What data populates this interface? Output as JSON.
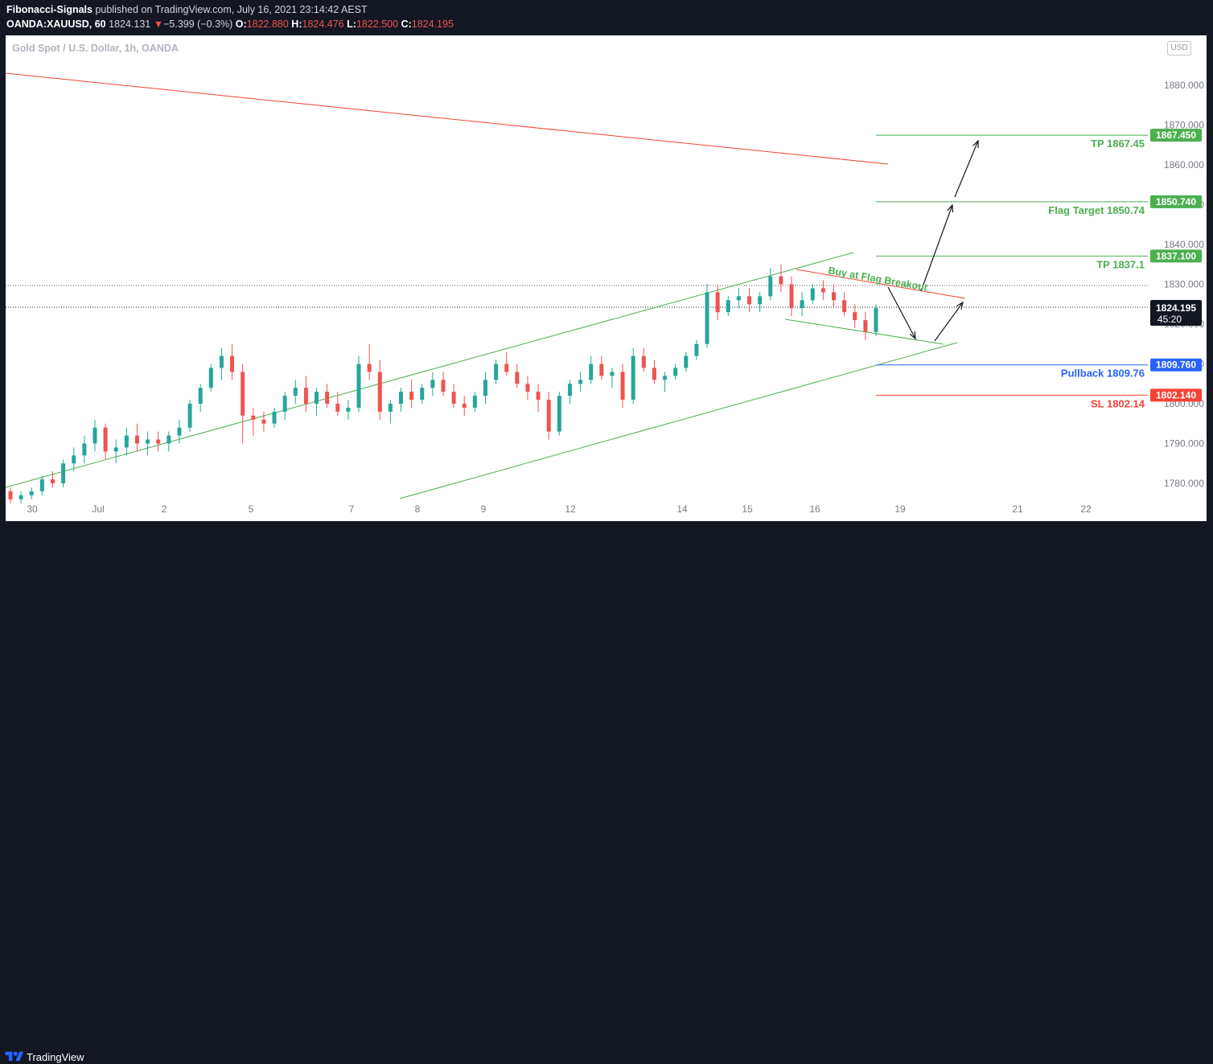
{
  "header": {
    "author": "Fibonacci-Signals",
    "published": "published on TradingView.com, July 16, 2021 23:14:42 AEST",
    "symbol": "OANDA:XAUUSD, 60",
    "last": "1824.131",
    "change": "−5.399 (−0.3%)",
    "o_label": "O:",
    "o_value": "1822.880",
    "h_label": "H:",
    "h_value": "1824.476",
    "l_label": "L:",
    "l_value": "1822.500",
    "c_label": "C:",
    "c_value": "1824.195"
  },
  "usd_badge": "USD",
  "footer": {
    "brand": "TradingView"
  },
  "colors": {
    "bull": "#26a69a",
    "bear": "#ef5350",
    "green_line": "#4caf50",
    "red_line": "#f44336",
    "blue_line": "#2962ff"
  },
  "chart_data": {
    "type": "candlestick",
    "title": "Gold Spot / U.S. Dollar, 1h, OANDA",
    "currency": "USD",
    "ylim": [
      1775,
      1889
    ],
    "y_ticks": [
      "1780.000",
      "1790.000",
      "1800.000",
      "1810.000",
      "1820.000",
      "1830.000",
      "1840.000",
      "1850.000",
      "1860.000",
      "1870.000",
      "1880.000"
    ],
    "x_ticks": [
      "30",
      "Jul",
      "2",
      "5",
      "7",
      "8",
      "9",
      "12",
      "14",
      "15",
      "16",
      "19",
      "21",
      "22"
    ],
    "current_price": "1824.195",
    "countdown": "45:20",
    "levels": [
      {
        "label": "TP 1867.45",
        "value": 1867.45,
        "tag": "1867.450",
        "color": "green"
      },
      {
        "label": "Flag Target 1850.74",
        "value": 1850.74,
        "tag": "1850.740",
        "color": "green"
      },
      {
        "label": "TP 1837.1",
        "value": 1837.1,
        "tag": "1837.100",
        "color": "green"
      },
      {
        "label": "Pullback 1809.76",
        "value": 1809.76,
        "tag": "1809.760",
        "color": "blue"
      },
      {
        "label": "SL 1802.14",
        "value": 1802.14,
        "tag": "1802.140",
        "color": "red"
      }
    ],
    "annotation": "Buy at Flag Breakout",
    "candles": [
      [
        1778,
        1779,
        1775,
        1776
      ],
      [
        1776,
        1778,
        1775,
        1777
      ],
      [
        1777,
        1779,
        1776,
        1778
      ],
      [
        1778,
        1782,
        1777,
        1781
      ],
      [
        1781,
        1783,
        1779,
        1780
      ],
      [
        1780,
        1786,
        1779,
        1785
      ],
      [
        1785,
        1789,
        1783,
        1787
      ],
      [
        1787,
        1792,
        1785,
        1790
      ],
      [
        1790,
        1796,
        1788,
        1794
      ],
      [
        1794,
        1795,
        1786,
        1788
      ],
      [
        1788,
        1791,
        1785,
        1789
      ],
      [
        1789,
        1794,
        1787,
        1792
      ],
      [
        1792,
        1795,
        1788,
        1790
      ],
      [
        1790,
        1793,
        1787,
        1791
      ],
      [
        1791,
        1793,
        1788,
        1790
      ],
      [
        1790,
        1793,
        1788,
        1792
      ],
      [
        1792,
        1796,
        1790,
        1794
      ],
      [
        1794,
        1801,
        1793,
        1800
      ],
      [
        1800,
        1805,
        1798,
        1804
      ],
      [
        1804,
        1810,
        1803,
        1809
      ],
      [
        1809,
        1814,
        1806,
        1812
      ],
      [
        1812,
        1815,
        1806,
        1808
      ],
      [
        1808,
        1810,
        1790,
        1797
      ],
      [
        1797,
        1799,
        1792,
        1796
      ],
      [
        1796,
        1798,
        1793,
        1795
      ],
      [
        1795,
        1799,
        1794,
        1798
      ],
      [
        1798,
        1803,
        1796,
        1802
      ],
      [
        1802,
        1806,
        1800,
        1804
      ],
      [
        1804,
        1807,
        1798,
        1800
      ],
      [
        1800,
        1804,
        1797,
        1803
      ],
      [
        1803,
        1805,
        1799,
        1800
      ],
      [
        1800,
        1803,
        1797,
        1798
      ],
      [
        1798,
        1801,
        1796,
        1799
      ],
      [
        1799,
        1812,
        1798,
        1810
      ],
      [
        1810,
        1815,
        1806,
        1808
      ],
      [
        1808,
        1811,
        1796,
        1798
      ],
      [
        1798,
        1801,
        1795,
        1800
      ],
      [
        1800,
        1804,
        1798,
        1803
      ],
      [
        1803,
        1806,
        1799,
        1801
      ],
      [
        1801,
        1805,
        1800,
        1804
      ],
      [
        1804,
        1808,
        1802,
        1806
      ],
      [
        1806,
        1808,
        1802,
        1803
      ],
      [
        1803,
        1805,
        1799,
        1800
      ],
      [
        1800,
        1802,
        1797,
        1799
      ],
      [
        1799,
        1803,
        1798,
        1802
      ],
      [
        1802,
        1808,
        1800,
        1806
      ],
      [
        1806,
        1811,
        1805,
        1810
      ],
      [
        1810,
        1813,
        1807,
        1808
      ],
      [
        1808,
        1810,
        1804,
        1805
      ],
      [
        1805,
        1807,
        1801,
        1803
      ],
      [
        1803,
        1805,
        1798,
        1801
      ],
      [
        1801,
        1803,
        1791,
        1793
      ],
      [
        1793,
        1803,
        1792,
        1802
      ],
      [
        1802,
        1806,
        1800,
        1805
      ],
      [
        1805,
        1808,
        1803,
        1806
      ],
      [
        1806,
        1812,
        1805,
        1810
      ],
      [
        1810,
        1812,
        1806,
        1807
      ],
      [
        1807,
        1809,
        1804,
        1808
      ],
      [
        1808,
        1810,
        1799,
        1801
      ],
      [
        1801,
        1814,
        1800,
        1812
      ],
      [
        1812,
        1814,
        1808,
        1809
      ],
      [
        1809,
        1811,
        1805,
        1806
      ],
      [
        1806,
        1808,
        1803,
        1807
      ],
      [
        1807,
        1810,
        1806,
        1809
      ],
      [
        1809,
        1813,
        1808,
        1812
      ],
      [
        1812,
        1816,
        1811,
        1815
      ],
      [
        1815,
        1830,
        1814,
        1828
      ],
      [
        1828,
        1830,
        1821,
        1823
      ],
      [
        1823,
        1827,
        1822,
        1826
      ],
      [
        1826,
        1829,
        1824,
        1827
      ],
      [
        1827,
        1829,
        1823,
        1825
      ],
      [
        1825,
        1828,
        1823,
        1827
      ],
      [
        1827,
        1834,
        1826,
        1832
      ],
      [
        1832,
        1835,
        1828,
        1830
      ],
      [
        1830,
        1832,
        1822,
        1824
      ],
      [
        1824,
        1828,
        1822,
        1826
      ],
      [
        1826,
        1830,
        1825,
        1829
      ],
      [
        1829,
        1831,
        1826,
        1828
      ],
      [
        1828,
        1830,
        1824,
        1826
      ],
      [
        1826,
        1828,
        1822,
        1823
      ],
      [
        1823,
        1825,
        1819,
        1821
      ],
      [
        1821,
        1823,
        1816,
        1818
      ],
      [
        1818,
        1825,
        1817,
        1824
      ]
    ]
  }
}
